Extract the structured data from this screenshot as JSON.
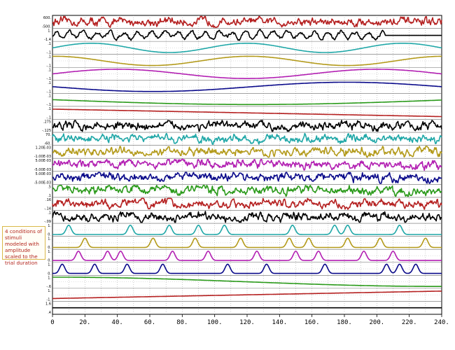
{
  "annotation": "4 conditions of stimuli modeled with amplitude scaled to the trial duration",
  "chart_data": {
    "type": "line",
    "title": "",
    "xlabel": "",
    "ylabel": "",
    "xlim": [
      0,
      240
    ],
    "x_ticks": [
      "0",
      "20.",
      "40.",
      "60.",
      "80.",
      "100.",
      "120.",
      "140.",
      "160.",
      "180.",
      "200.",
      "220.",
      "240."
    ],
    "grid": true,
    "layout": "stacked-traces",
    "tracks": [
      {
        "color": "#b52020",
        "kind": "noise",
        "ylabels": [
          "600.",
          "-500."
        ]
      },
      {
        "color": "#000000",
        "kind": "noise-truncated",
        "end": 205,
        "ylabels": [
          "1.",
          "-1.4"
        ]
      },
      {
        "color": "#1fa7a7",
        "kind": "sine",
        "cycles": 2.5,
        "ylabels": [
          ".1",
          "-.1"
        ]
      },
      {
        "color": "#b39a1a",
        "kind": "sine",
        "cycles": 2.0,
        "phase": 1.5,
        "ylabels": [
          ".1",
          "-.1"
        ]
      },
      {
        "color": "#b21fb2",
        "kind": "sine",
        "cycles": 1.5,
        "ylabels": [
          ".1",
          "-.1"
        ]
      },
      {
        "color": "#0a0a8a",
        "kind": "sine",
        "cycles": 1.0,
        "phase": 3.1,
        "ylabels": [
          ".1",
          "-.1"
        ]
      },
      {
        "color": "#2a9a1a",
        "kind": "sine",
        "cycles": 0.5,
        "phase": 3.1,
        "ylabels": [
          ".1",
          "-.1"
        ]
      },
      {
        "color": "#b52020",
        "kind": "linear",
        "from": 0.9,
        "to": 0.1,
        "ylabels": [
          ".1",
          "-.1"
        ]
      },
      {
        "color": "#000000",
        "kind": "noise",
        "ylabels": [
          ".275",
          "-.125"
        ]
      },
      {
        "color": "#1fa7a7",
        "kind": "noise",
        "ylabels": [
          "70.",
          "-60."
        ]
      },
      {
        "color": "#b39a1a",
        "kind": "noise",
        "ylabels": [
          "1.20E-03",
          "-1.00E-03"
        ]
      },
      {
        "color": "#b21fb2",
        "kind": "noise-drift",
        "ylabels": [
          "5.00E-03",
          "-5.00E-03"
        ]
      },
      {
        "color": "#0a0a8a",
        "kind": "noise-drift",
        "ylabels": [
          "5.00E-03",
          "-5.00E-03"
        ]
      },
      {
        "color": "#2a9a1a",
        "kind": "noise-drift",
        "ylabels": [
          ".5",
          ".1"
        ]
      },
      {
        "color": "#b52020",
        "kind": "noise",
        "ylabels": [
          ".16",
          "-.14"
        ]
      },
      {
        "color": "#000000",
        "kind": "noise",
        "ylabels": [
          ".1",
          "-.09"
        ]
      },
      {
        "color": "#1fa7a7",
        "kind": "stim",
        "onsets": [
          10,
          48,
          72,
          90,
          106,
          148,
          174,
          182,
          214
        ],
        "ylabels": [
          "1.",
          "0."
        ]
      },
      {
        "color": "#b39a1a",
        "kind": "stim",
        "onsets": [
          20,
          62,
          88,
          116,
          146,
          158,
          182,
          202,
          230
        ],
        "ylabels": [
          "1.",
          "0."
        ]
      },
      {
        "color": "#b21fb2",
        "kind": "stim",
        "onsets": [
          16,
          34,
          42,
          74,
          96,
          126,
          150,
          164,
          192,
          210
        ],
        "ylabels": [
          "1.",
          "0."
        ]
      },
      {
        "color": "#0a0a8a",
        "kind": "stim",
        "onsets": [
          6,
          26,
          46,
          68,
          108,
          132,
          168,
          206,
          214,
          224
        ],
        "ylabels": [
          "1.",
          "0."
        ]
      },
      {
        "color": "#2a9a1a",
        "kind": "sine",
        "cycles": 0.5,
        "phase": 1.57,
        "ylabels": [
          "1.",
          "-.6"
        ]
      },
      {
        "color": "#b52020",
        "kind": "linear",
        "from": 0.1,
        "to": 0.9,
        "ylabels": [
          "1.",
          "-1."
        ]
      },
      {
        "color": "#000000",
        "kind": "constant",
        "value": 0.5,
        "ylabels": [
          "1.6",
          ".4"
        ]
      }
    ]
  }
}
